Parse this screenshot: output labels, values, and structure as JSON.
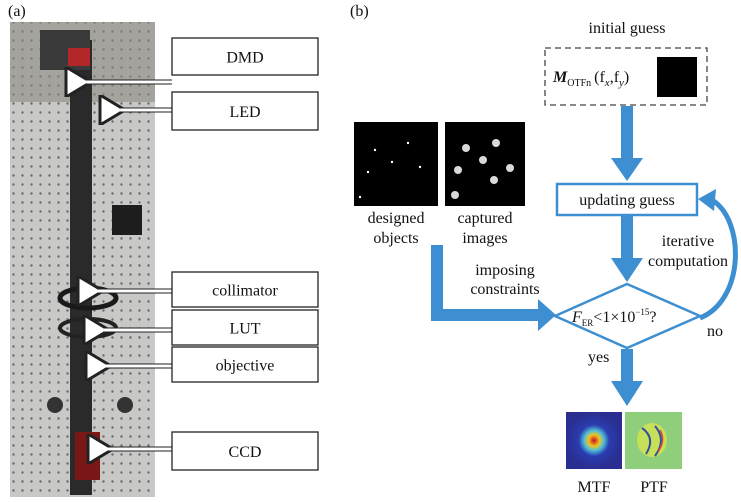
{
  "panel_a": {
    "label": "(a)",
    "components": [
      "DMD",
      "LED",
      "collimator",
      "LUT",
      "objective",
      "CCD"
    ]
  },
  "panel_b": {
    "label": "(b)",
    "initial_guess": "initial guess",
    "formula": {
      "symbol": "M",
      "subscript": "OTFn",
      "open": "(f",
      "x_sub": "x",
      "comma": ",f",
      "y_sub": "y",
      "close": ")"
    },
    "designed_objects": [
      "designed",
      "objects"
    ],
    "captured_images": [
      "captured",
      "images"
    ],
    "updating_guess": "updating guess",
    "iterative_computation": [
      "iterative",
      "computation"
    ],
    "imposing_constraints": [
      "imposing",
      "constraints"
    ],
    "condition": {
      "symbol": "F",
      "subscript": "ER",
      "relation": "<1×10",
      "exponent": "−15",
      "end": "?"
    },
    "no": "no",
    "yes": "yes",
    "outputs": [
      "MTF",
      "PTF"
    ]
  }
}
